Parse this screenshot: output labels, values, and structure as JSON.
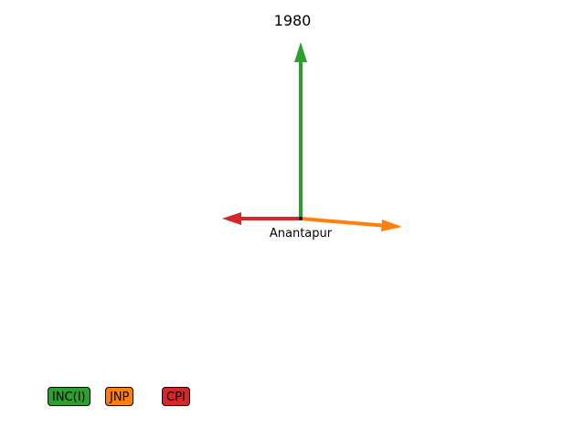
{
  "diagram": {
    "title": "1980",
    "center_label": "Anantapur",
    "arrows": [
      {
        "party": "INC(I)",
        "color": "#2ca02c",
        "direction": "up"
      },
      {
        "party": "JNP",
        "color": "#ff7f0e",
        "direction": "right-slightly-down"
      },
      {
        "party": "CPI",
        "color": "#d62728",
        "direction": "left"
      }
    ]
  },
  "legend": {
    "items": [
      {
        "label": "INC(I)",
        "color": "#2ca02c"
      },
      {
        "label": "JNP",
        "color": "#ff7f0e"
      },
      {
        "label": "CPI",
        "color": "#d62728"
      }
    ]
  }
}
